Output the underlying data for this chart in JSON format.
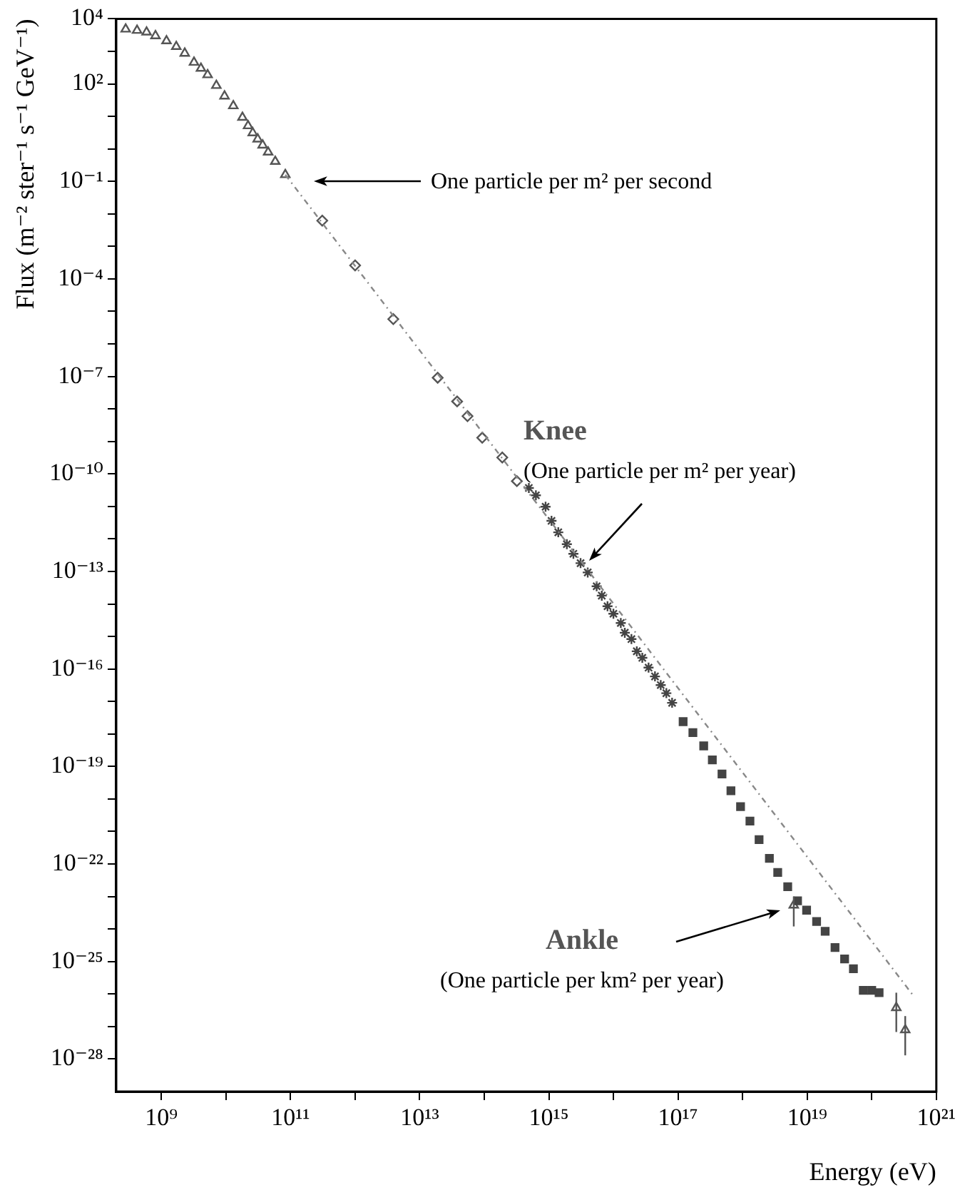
{
  "chart_data": {
    "type": "scatter",
    "xlabel": "Energy (eV)",
    "ylabel": "Flux (m⁻² ster⁻¹ s⁻¹ GeV⁻¹)",
    "log": "xy",
    "grid": false,
    "xlim": [
      200000000.0,
      1e+21
    ],
    "ylim": [
      1e-29,
      10000.0
    ],
    "xticks": [
      {
        "value": 1000000000.0,
        "label": "10⁹"
      },
      {
        "value": 10000000000.0,
        "label": null
      },
      {
        "value": 100000000000.0,
        "label": "10¹¹"
      },
      {
        "value": 1000000000000.0,
        "label": null
      },
      {
        "value": 10000000000000.0,
        "label": "10¹³"
      },
      {
        "value": 100000000000000.0,
        "label": null
      },
      {
        "value": 1000000000000000.0,
        "label": "10¹⁵"
      },
      {
        "value": 1e+16,
        "label": null
      },
      {
        "value": 1e+17,
        "label": "10¹⁷"
      },
      {
        "value": 1e+18,
        "label": null
      },
      {
        "value": 1e+19,
        "label": "10¹⁹"
      },
      {
        "value": 1e+20,
        "label": null
      },
      {
        "value": 1e+21,
        "label": "10²¹"
      }
    ],
    "yticks": [
      {
        "value": 10000.0,
        "label": "10⁴"
      },
      {
        "value": 1000.0,
        "label": null
      },
      {
        "value": 100.0,
        "label": "10²"
      },
      {
        "value": 10.0,
        "label": null
      },
      {
        "value": 1,
        "label": null
      },
      {
        "value": 0.1,
        "label": "10⁻¹"
      },
      {
        "value": 0.01,
        "label": null
      },
      {
        "value": 0.001,
        "label": null
      },
      {
        "value": 0.0001,
        "label": "10⁻⁴"
      },
      {
        "value": 1e-05,
        "label": null
      },
      {
        "value": 1e-06,
        "label": null
      },
      {
        "value": 1e-07,
        "label": "10⁻⁷"
      },
      {
        "value": 1e-08,
        "label": null
      },
      {
        "value": 1e-09,
        "label": null
      },
      {
        "value": 1e-10,
        "label": "10⁻¹⁰"
      },
      {
        "value": 1e-11,
        "label": null
      },
      {
        "value": 1e-12,
        "label": null
      },
      {
        "value": 1e-13,
        "label": "10⁻¹³"
      },
      {
        "value": 1e-14,
        "label": null
      },
      {
        "value": 1e-15,
        "label": null
      },
      {
        "value": 1e-16,
        "label": "10⁻¹⁶"
      },
      {
        "value": 1e-17,
        "label": null
      },
      {
        "value": 1e-18,
        "label": null
      },
      {
        "value": 1e-19,
        "label": "10⁻¹⁹"
      },
      {
        "value": 1e-20,
        "label": null
      },
      {
        "value": 1e-21,
        "label": null
      },
      {
        "value": 1e-22,
        "label": "10⁻²²"
      },
      {
        "value": 1e-23,
        "label": null
      },
      {
        "value": 1e-24,
        "label": null
      },
      {
        "value": 1e-25,
        "label": "10⁻²⁵"
      },
      {
        "value": 1e-26,
        "label": null
      },
      {
        "value": 1e-27,
        "label": null
      },
      {
        "value": 1e-28,
        "label": "10⁻²⁸"
      }
    ],
    "series": [
      {
        "type": "line",
        "color": "#888888",
        "line_style": "dotted",
        "marker": "none",
        "x": [
          83000000000.0,
          4.3e+20
        ],
        "values": [
          0.16,
          9.5e-27
        ]
      },
      {
        "type": "scatter",
        "color": "#555555",
        "marker": "triangle",
        "x": [
          280000000.0,
          420000000.0,
          590000000.0,
          810000000.0,
          1200000000.0,
          1700000000.0,
          2300000000.0,
          3200000000.0,
          4100000000.0,
          5200000000.0,
          7100000000.0,
          9500000000.0,
          13000000000.0,
          18000000000.0,
          22000000000.0,
          26000000000.0,
          31000000000.0,
          37000000000.0,
          45000000000.0,
          58000000000.0,
          83000000000.0
        ],
        "values": [
          4800.0,
          4400.0,
          3900.0,
          3000.0,
          2100.0,
          1400.0,
          870.0,
          460.0,
          300.0,
          190.0,
          89,
          42,
          21,
          9.3,
          5.1,
          3.1,
          2.0,
          1.3,
          0.79,
          0.41,
          0.16
        ]
      },
      {
        "type": "scatter",
        "color": "#555555",
        "marker": "diamond",
        "x": [
          310000000000.0,
          1000000000000.0,
          3900000000000.0,
          19000000000000.0,
          38000000000000.0,
          55000000000000.0,
          93000000000000.0,
          190000000000000.0,
          320000000000000.0
        ],
        "values": [
          0.0062,
          0.00026,
          5.8e-06,
          9.1e-08,
          1.7e-08,
          6e-09,
          1.3e-09,
          3.2e-10,
          6e-11
        ]
      },
      {
        "type": "scatter",
        "color": "#444444",
        "marker": "cross",
        "x": [
          490000000000000.0,
          630000000000000.0,
          890000000000000.0,
          1100000000000000.0,
          1400000000000000.0,
          1900000000000000.0,
          2400000000000000.0,
          3100000000000000.0,
          4000000000000000.0,
          5500000000000000.0,
          6600000000000000.0,
          8100000000000000.0,
          1e+16,
          1.3e+16,
          1.5e+16,
          1.9e+16,
          2.3e+16,
          2.8e+16,
          3.5e+16,
          4.4e+16,
          5.4e+16,
          6.6e+16,
          8.1e+16
        ],
        "values": [
          3.7e-11,
          2.2e-11,
          9.8e-12,
          3.6e-12,
          1.6e-12,
          6.9e-13,
          3.5e-13,
          1.8e-13,
          9.3e-14,
          3.5e-14,
          1.8e-14,
          8.5e-15,
          5e-15,
          2.6e-15,
          1.3e-15,
          8.3e-16,
          3.5e-16,
          2.2e-16,
          1.1e-16,
          5.9e-17,
          3.2e-17,
          1.8e-17,
          9.1e-18
        ]
      },
      {
        "type": "scatter",
        "color": "#444444",
        "marker": "square",
        "x": [
          1.2e+17,
          1.7e+17,
          2.5e+17,
          3.4e+17,
          4.8e+17,
          6.6e+17,
          9.3e+17,
          1.3e+18,
          1.8e+18,
          2.6e+18,
          3.5e+18,
          5e+18,
          7.1e+18,
          9.8e+18,
          1.4e+19,
          1.9e+19,
          2.7e+19,
          3.8e+19,
          5.2e+19,
          7.4e+19,
          1e+20,
          1.3e+20
        ],
        "values": [
          2.4e-18,
          1.1e-18,
          4.3e-19,
          1.6e-19,
          5.9e-20,
          1.8e-20,
          5.8e-21,
          2.1e-21,
          5.6e-22,
          1.5e-22,
          5.5e-23,
          2e-23,
          7.4e-24,
          3.8e-24,
          1.7e-24,
          8.5e-25,
          2.7e-25,
          1.2e-25,
          6e-26,
          1.3e-26,
          1.3e-26,
          1.1e-26
        ]
      },
      {
        "type": "scatter",
        "color": "#555555",
        "marker": "triangle",
        "x": [
          6.2e+18,
          2.4e+20,
          3.3e+20
        ],
        "values": [
          5.4e-24,
          3.8e-27,
          7.9e-28
        ],
        "errors": [
          [
            1.2e-24,
            1e-23
          ],
          [
            6.8e-28,
            1.1e-26
          ],
          [
            1.3e-28,
            2.1e-27
          ]
        ]
      }
    ],
    "annotations": [
      "One particle per m² per second",
      "Knee\n(One particle per m² per year)",
      "Ankle\n(One particle per km² per year)"
    ]
  }
}
